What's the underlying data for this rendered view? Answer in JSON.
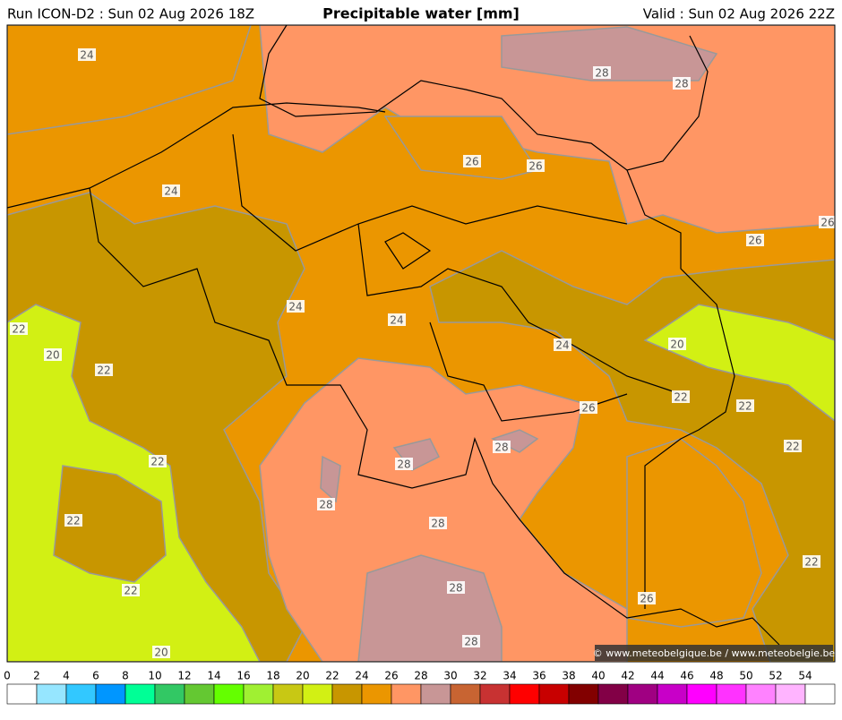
{
  "header": {
    "run": "Run ICON-D2 : Sun 02 Aug 2026 18Z",
    "title": "Precipitable water [mm]",
    "valid": "Valid : Sun 02 Aug 2026 22Z"
  },
  "map": {
    "contour_labels": [
      "24",
      "28",
      "28",
      "26",
      "26",
      "24",
      "26",
      "26",
      "24",
      "24",
      "22",
      "24",
      "20",
      "20",
      "22",
      "22",
      "26",
      "22",
      "22",
      "28",
      "28",
      "22",
      "28",
      "22",
      "28",
      "22",
      "28",
      "22",
      "26",
      "28",
      "20"
    ],
    "copyright": "© www.meteobelgique.be / www.meteobelgie.be"
  },
  "colorbar": {
    "ticks": [
      0,
      2,
      4,
      6,
      8,
      10,
      12,
      14,
      16,
      18,
      20,
      22,
      24,
      26,
      28,
      30,
      32,
      34,
      36,
      38,
      40,
      42,
      44,
      46,
      48,
      50,
      52,
      54
    ],
    "colors": [
      "#ffffff",
      "#96e6ff",
      "#32c8ff",
      "#0096ff",
      "#00ff96",
      "#32c864",
      "#64c832",
      "#64ff00",
      "#a0f032",
      "#c8c814",
      "#d2f014",
      "#c89600",
      "#eb9600",
      "#ff9664",
      "#c89696",
      "#c86432",
      "#c83232",
      "#ff0000",
      "#c80000",
      "#820000",
      "#820046",
      "#a00082",
      "#c800c8",
      "#ff00ff",
      "#ff32ff",
      "#ff82ff",
      "#ffb4ff",
      "#ffffff"
    ]
  }
}
